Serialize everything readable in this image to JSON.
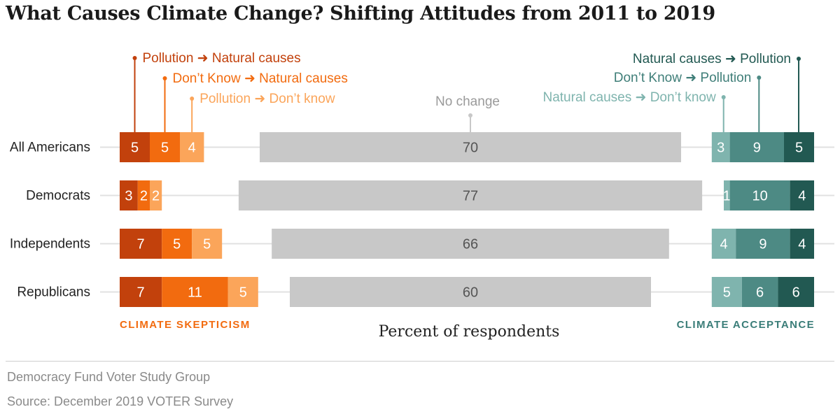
{
  "title": "What Causes Climate Change? Shifting Attitudes from 2011 to 2019",
  "footer": {
    "org": "Democracy Fund Voter Study Group",
    "source": "Source: December 2019 VOTER Survey"
  },
  "chart_data": {
    "type": "bar",
    "stacked": true,
    "xlabel": "Percent of respondents",
    "categories": [
      "All Americans",
      "Democrats",
      "Independents",
      "Republicans"
    ],
    "groups": {
      "skepticism": {
        "label": "CLIMATE SKEPTICISM",
        "color": "#f26b0f"
      },
      "acceptance": {
        "label": "CLIMATE ACCEPTANCE",
        "color": "#3a7d78"
      }
    },
    "series": [
      {
        "name": "Pollution ➜ Natural causes",
        "group": "skepticism",
        "color": "#c2410c",
        "label_color": "#c2410c",
        "values": [
          5,
          3,
          7,
          7
        ]
      },
      {
        "name": "Don’t Know ➜ Natural causes",
        "group": "skepticism",
        "color": "#f26b0f",
        "label_color": "#f26b0f",
        "values": [
          5,
          2,
          5,
          11
        ]
      },
      {
        "name": "Pollution ➜ Don’t know",
        "group": "skepticism",
        "color": "#fba55a",
        "label_color": "#fba55a",
        "values": [
          4,
          2,
          5,
          5
        ]
      },
      {
        "name": "No change",
        "group": "neutral",
        "color": "#c8c8c8",
        "label_color": "#9a9a9a",
        "values": [
          70,
          77,
          66,
          60
        ]
      },
      {
        "name": "Natural causes ➜ Don’t know",
        "group": "acceptance",
        "color": "#7fb4ae",
        "label_color": "#7fb4ae",
        "values": [
          3,
          1,
          4,
          5
        ]
      },
      {
        "name": "Don’t Know ➜ Pollution",
        "group": "acceptance",
        "color": "#4d8a84",
        "label_color": "#3f7e78",
        "values": [
          9,
          10,
          9,
          6
        ]
      },
      {
        "name": "Natural causes ➜ Pollution",
        "group": "acceptance",
        "color": "#225952",
        "label_color": "#225952",
        "values": [
          5,
          4,
          4,
          6
        ]
      }
    ],
    "grid": false,
    "legend": "direct labels above bars"
  }
}
